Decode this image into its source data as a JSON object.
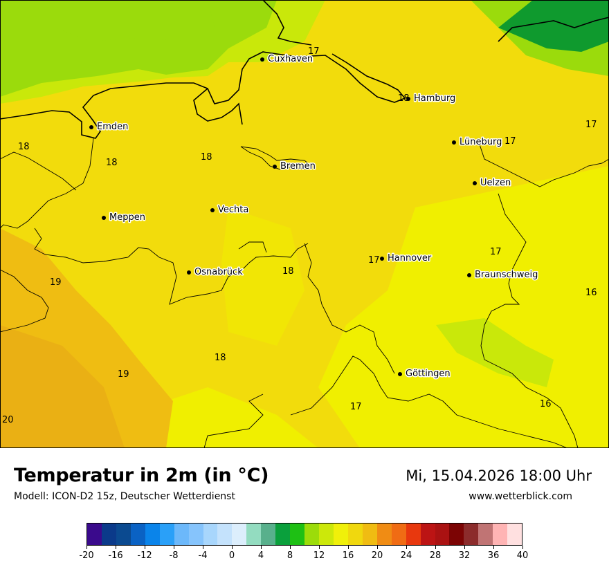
{
  "map": {
    "cities": [
      {
        "name": "Cuxhaven"
      },
      {
        "name": "Hamburg"
      },
      {
        "name": "Emden"
      },
      {
        "name": "Lüneburg"
      },
      {
        "name": "Bremen"
      },
      {
        "name": "Uelzen"
      },
      {
        "name": "Vechta"
      },
      {
        "name": "Meppen"
      },
      {
        "name": "Hannover"
      },
      {
        "name": "Osnabrück"
      },
      {
        "name": "Braunschweig"
      },
      {
        "name": "Göttingen"
      }
    ],
    "values": [
      "17",
      "18",
      "17",
      "18",
      "18",
      "18",
      "17",
      "17",
      "17",
      "18",
      "19",
      "16",
      "18",
      "19",
      "17",
      "16",
      "20"
    ],
    "colors": {
      "base": "#f2dc0c",
      "warm": "#efbd12",
      "warmer": "#eab014",
      "cool": "#f0ef00",
      "lightgreen": "#c9e80a",
      "green": "#9bdb0c",
      "darkgreen": "#1fba1c",
      "darkestgreen": "#0f9a2e"
    }
  },
  "header": {
    "title": "Temperatur in 2m (in °C)",
    "model": "Modell: ICON-D2 15z, Deutscher Wetterdienst",
    "datetime": "Mi, 15.04.2026 18:00 Uhr",
    "website": "www.wetterblick.com"
  },
  "legend": {
    "colors": [
      "#3a0a8c",
      "#0b3a8a",
      "#0b4a90",
      "#0a62c4",
      "#0a84ea",
      "#2aa0f8",
      "#6cb8fa",
      "#86c4fc",
      "#a8d6fc",
      "#c4e2fc",
      "#dceefc",
      "#93dcc0",
      "#58b08c",
      "#0aa03c",
      "#1ec014",
      "#9cdc0a",
      "#cce80a",
      "#f0f00a",
      "#f0d80e",
      "#f0bc12",
      "#f08c14",
      "#f06c14",
      "#e8380e",
      "#bc1414",
      "#aa1212",
      "#7c0404",
      "#8c2c2c",
      "#c07474",
      "#ffb4b4",
      "#ffe0e0"
    ],
    "tick_values": [
      "-20",
      "-16",
      "-12",
      "-8",
      "-4",
      "0",
      "4",
      "8",
      "12",
      "16",
      "20",
      "24",
      "28",
      "32",
      "36",
      "40"
    ]
  }
}
